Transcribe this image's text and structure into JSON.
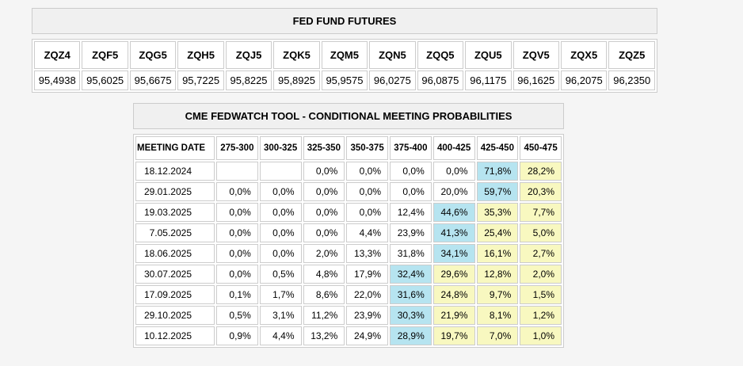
{
  "colors": {
    "page_bg": "#f5f5f5",
    "border": "#cccccc",
    "title_bg": "#f0f0f0",
    "cell_bg": "#ffffff",
    "highlight_blue": "#b6e4f0",
    "highlight_yellow": "#f8f8c0"
  },
  "futures_table": {
    "title": "FED FUND FUTURES",
    "columns": [
      "ZQZ4",
      "ZQF5",
      "ZQG5",
      "ZQH5",
      "ZQJ5",
      "ZQK5",
      "ZQM5",
      "ZQN5",
      "ZQQ5",
      "ZQU5",
      "ZQV5",
      "ZQX5",
      "ZQZ5"
    ],
    "values": [
      "95,4938",
      "95,6025",
      "95,6675",
      "95,7225",
      "95,8225",
      "95,8925",
      "95,9575",
      "96,0275",
      "96,0875",
      "96,1175",
      "96,1625",
      "96,2075",
      "96,2350"
    ]
  },
  "fedwatch_table": {
    "title": "CME FEDWATCH TOOL - CONDITIONAL MEETING PROBABILITIES",
    "columns": [
      "MEETING DATE",
      "275-300",
      "300-325",
      "325-350",
      "350-375",
      "375-400",
      "400-425",
      "425-450",
      "450-475"
    ],
    "rows": [
      {
        "date": "18.12.2024",
        "cells": [
          {
            "v": ""
          },
          {
            "v": ""
          },
          {
            "v": "0,0%"
          },
          {
            "v": "0,0%"
          },
          {
            "v": "0,0%"
          },
          {
            "v": "0,0%"
          },
          {
            "v": "71,8%",
            "hl": "blue"
          },
          {
            "v": "28,2%",
            "hl": "yellow"
          }
        ]
      },
      {
        "date": "29.01.2025",
        "cells": [
          {
            "v": "0,0%"
          },
          {
            "v": "0,0%"
          },
          {
            "v": "0,0%"
          },
          {
            "v": "0,0%"
          },
          {
            "v": "0,0%"
          },
          {
            "v": "20,0%"
          },
          {
            "v": "59,7%",
            "hl": "blue"
          },
          {
            "v": "20,3%",
            "hl": "yellow"
          }
        ]
      },
      {
        "date": "19.03.2025",
        "cells": [
          {
            "v": "0,0%"
          },
          {
            "v": "0,0%"
          },
          {
            "v": "0,0%"
          },
          {
            "v": "0,0%"
          },
          {
            "v": "12,4%"
          },
          {
            "v": "44,6%",
            "hl": "blue"
          },
          {
            "v": "35,3%",
            "hl": "yellow"
          },
          {
            "v": "7,7%",
            "hl": "yellow"
          }
        ]
      },
      {
        "date": "7.05.2025",
        "cells": [
          {
            "v": "0,0%"
          },
          {
            "v": "0,0%"
          },
          {
            "v": "0,0%"
          },
          {
            "v": "4,4%"
          },
          {
            "v": "23,9%"
          },
          {
            "v": "41,3%",
            "hl": "blue"
          },
          {
            "v": "25,4%",
            "hl": "yellow"
          },
          {
            "v": "5,0%",
            "hl": "yellow"
          }
        ]
      },
      {
        "date": "18.06.2025",
        "cells": [
          {
            "v": "0,0%"
          },
          {
            "v": "0,0%"
          },
          {
            "v": "2,0%"
          },
          {
            "v": "13,3%"
          },
          {
            "v": "31,8%"
          },
          {
            "v": "34,1%",
            "hl": "blue"
          },
          {
            "v": "16,1%",
            "hl": "yellow"
          },
          {
            "v": "2,7%",
            "hl": "yellow"
          }
        ]
      },
      {
        "date": "30.07.2025",
        "cells": [
          {
            "v": "0,0%"
          },
          {
            "v": "0,5%"
          },
          {
            "v": "4,8%"
          },
          {
            "v": "17,9%"
          },
          {
            "v": "32,4%",
            "hl": "blue"
          },
          {
            "v": "29,6%",
            "hl": "yellow"
          },
          {
            "v": "12,8%",
            "hl": "yellow"
          },
          {
            "v": "2,0%",
            "hl": "yellow"
          }
        ]
      },
      {
        "date": "17.09.2025",
        "cells": [
          {
            "v": "0,1%"
          },
          {
            "v": "1,7%"
          },
          {
            "v": "8,6%"
          },
          {
            "v": "22,0%"
          },
          {
            "v": "31,6%",
            "hl": "blue"
          },
          {
            "v": "24,8%",
            "hl": "yellow"
          },
          {
            "v": "9,7%",
            "hl": "yellow"
          },
          {
            "v": "1,5%",
            "hl": "yellow"
          }
        ]
      },
      {
        "date": "29.10.2025",
        "cells": [
          {
            "v": "0,5%"
          },
          {
            "v": "3,1%"
          },
          {
            "v": "11,2%"
          },
          {
            "v": "23,9%"
          },
          {
            "v": "30,3%",
            "hl": "blue"
          },
          {
            "v": "21,9%",
            "hl": "yellow"
          },
          {
            "v": "8,1%",
            "hl": "yellow"
          },
          {
            "v": "1,2%",
            "hl": "yellow"
          }
        ]
      },
      {
        "date": "10.12.2025",
        "cells": [
          {
            "v": "0,9%"
          },
          {
            "v": "4,4%"
          },
          {
            "v": "13,2%"
          },
          {
            "v": "24,9%"
          },
          {
            "v": "28,9%",
            "hl": "blue"
          },
          {
            "v": "19,7%",
            "hl": "yellow"
          },
          {
            "v": "7,0%",
            "hl": "yellow"
          },
          {
            "v": "1,0%",
            "hl": "yellow"
          }
        ]
      }
    ]
  }
}
